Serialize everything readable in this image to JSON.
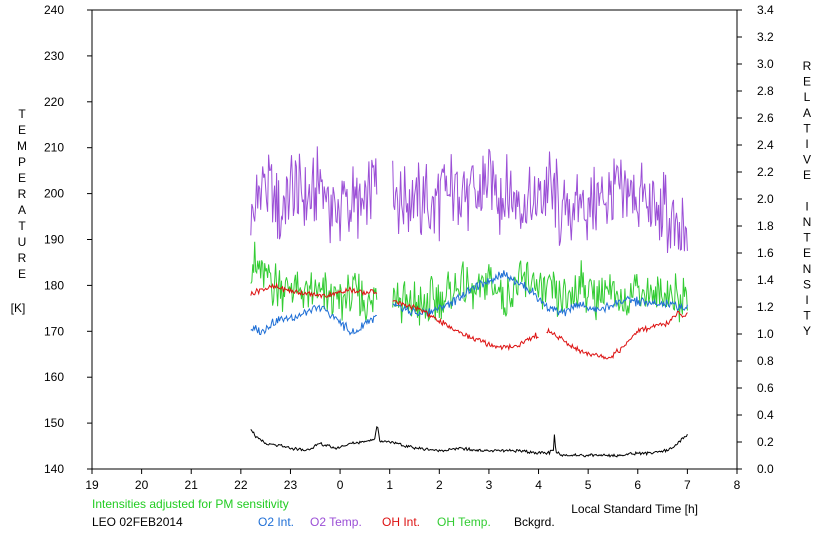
{
  "chart_data": {
    "type": "line",
    "x_axis": {
      "label": "Local Standard Time [h]",
      "range": [
        19,
        32
      ],
      "ticks": [
        19,
        20,
        21,
        22,
        23,
        24,
        25,
        26,
        27,
        28,
        29,
        30,
        31,
        32
      ],
      "tick_labels": [
        "19",
        "20",
        "21",
        "22",
        "23",
        "0",
        "1",
        "2",
        "3",
        "4",
        "5",
        "6",
        "7",
        "8"
      ]
    },
    "y_left": {
      "label": "TEMPERATURE",
      "unit": "[K]",
      "range": [
        140,
        240
      ],
      "ticks": [
        140,
        150,
        160,
        170,
        180,
        190,
        200,
        210,
        220,
        230,
        240
      ]
    },
    "y_right": {
      "label": "RELATIVE INTENSITY",
      "range": [
        0.0,
        3.4
      ],
      "ticks": [
        "0.0",
        "0.2",
        "0.4",
        "0.6",
        "0.8",
        "1.0",
        "1.2",
        "1.4",
        "1.6",
        "1.8",
        "2.0",
        "2.2",
        "2.4",
        "2.6",
        "2.8",
        "3.0",
        "3.2",
        "3.4"
      ]
    },
    "note": "Intensities adjusted for PM sensitivity",
    "station": "LEO 02FEB2014",
    "grid": false,
    "legend_position": "bottom",
    "legend": [
      {
        "name": "O2 Int.",
        "color": "#1f6fd6"
      },
      {
        "name": "O2 Temp.",
        "color": "#9b4fd6"
      },
      {
        "name": "OH Int.",
        "color": "#dd1111"
      },
      {
        "name": "OH Temp.",
        "color": "#33cc33"
      },
      {
        "name": "Bckgrd.",
        "color": "#000000"
      }
    ],
    "series": [
      {
        "name": "O2 Temp.",
        "axis": "left",
        "color": "#9b4fd6",
        "x": [
          22.2,
          22.5,
          22.8,
          23.0,
          23.3,
          23.6,
          23.9,
          24.1,
          24.4,
          24.7,
          25.2,
          25.5,
          25.8,
          26.1,
          26.4,
          26.7,
          27.0,
          27.3,
          27.6,
          27.9,
          28.2,
          28.5,
          28.8,
          29.1,
          29.4,
          29.7,
          30.0,
          30.3,
          30.5,
          30.6,
          30.7,
          31.0
        ],
        "y": [
          194,
          203,
          196,
          201,
          198,
          203,
          195,
          198,
          197,
          202,
          199,
          199,
          197,
          200,
          202,
          199,
          203,
          199,
          200,
          196,
          202,
          195,
          199,
          197,
          199,
          199,
          200,
          196,
          197,
          195,
          193,
          188
        ],
        "amplitude": 10,
        "gaps": [
          [
            24.75,
            25.05
          ]
        ]
      },
      {
        "name": "OH Temp.",
        "axis": "left",
        "color": "#33cc33",
        "x": [
          22.2,
          22.5,
          22.8,
          23.1,
          23.4,
          23.7,
          24.0,
          24.3,
          24.6,
          24.9,
          25.2,
          25.5,
          25.8,
          26.1,
          26.4,
          26.7,
          27.0,
          27.3,
          27.6,
          27.9,
          28.2,
          28.5,
          28.8,
          29.1,
          29.4,
          29.7,
          30.0,
          30.3,
          30.6,
          30.8,
          31.0
        ],
        "y": [
          186,
          181,
          180,
          179,
          178,
          178,
          177,
          178,
          176,
          180,
          176,
          176,
          176,
          178,
          180,
          178,
          181,
          178,
          180,
          181,
          178,
          177,
          180,
          178,
          179,
          176,
          180,
          178,
          179,
          177,
          178
        ],
        "amplitude": 6,
        "gaps": [
          [
            24.75,
            25.05
          ]
        ]
      },
      {
        "name": "O2 Int.",
        "axis": "right",
        "color": "#1f6fd6",
        "x": [
          22.2,
          22.4,
          22.7,
          23.0,
          23.3,
          23.6,
          23.9,
          24.1,
          24.3,
          24.5,
          24.7,
          25.0,
          25.3,
          25.6,
          25.9,
          26.2,
          26.5,
          26.8,
          27.0,
          27.3,
          27.6,
          27.9,
          28.2,
          28.5,
          28.8,
          29.1,
          29.4,
          29.7,
          30.0,
          30.3,
          30.6,
          30.8,
          31.0
        ],
        "y": [
          1.05,
          1.02,
          1.1,
          1.12,
          1.15,
          1.2,
          1.12,
          1.05,
          1.0,
          1.08,
          1.12,
          1.22,
          1.18,
          1.15,
          1.18,
          1.22,
          1.3,
          1.36,
          1.4,
          1.45,
          1.38,
          1.3,
          1.2,
          1.15,
          1.22,
          1.18,
          1.2,
          1.25,
          1.24,
          1.22,
          1.22,
          1.2,
          1.2
        ],
        "amplitude": 0.04,
        "gaps": [
          [
            24.75,
            25.05
          ]
        ]
      },
      {
        "name": "OH Int.",
        "axis": "right",
        "color": "#dd1111",
        "x": [
          22.2,
          22.4,
          22.7,
          23.0,
          23.3,
          23.6,
          23.9,
          24.2,
          24.5,
          24.7,
          25.0,
          25.3,
          25.6,
          25.9,
          26.2,
          26.5,
          26.8,
          27.0,
          27.3,
          27.6,
          27.9,
          28.2,
          28.5,
          28.8,
          29.1,
          29.4,
          29.7,
          30.0,
          30.3,
          30.6,
          30.8,
          31.0
        ],
        "y": [
          1.3,
          1.33,
          1.35,
          1.32,
          1.3,
          1.28,
          1.3,
          1.33,
          1.3,
          1.32,
          1.25,
          1.22,
          1.18,
          1.12,
          1.05,
          1.0,
          0.95,
          0.92,
          0.9,
          0.92,
          0.98,
          1.02,
          0.95,
          0.88,
          0.85,
          0.82,
          0.9,
          1.02,
          1.05,
          1.08,
          1.15,
          1.14
        ],
        "amplitude": 0.025,
        "gaps": [
          [
            24.75,
            25.05
          ],
          [
            28.0,
            28.15
          ]
        ]
      },
      {
        "name": "Bckgrd.",
        "axis": "left",
        "color": "#000000",
        "x": [
          22.2,
          22.3,
          22.5,
          22.8,
          23.0,
          23.3,
          23.6,
          23.9,
          24.2,
          24.5,
          24.7,
          24.75,
          24.8,
          25.0,
          25.3,
          25.6,
          26.0,
          26.4,
          26.8,
          27.2,
          27.6,
          28.0,
          28.2,
          28.3,
          28.32,
          28.35,
          28.5,
          28.9,
          29.3,
          29.7,
          30.0,
          30.3,
          30.6,
          30.8,
          31.0
        ],
        "y": [
          149,
          147,
          145.5,
          145,
          144.5,
          144,
          145.5,
          144.5,
          145.5,
          146,
          146.5,
          150,
          146,
          146,
          145,
          144.5,
          144,
          144.5,
          144,
          144,
          144,
          143.5,
          143.5,
          144,
          147.5,
          143.5,
          143,
          143,
          143,
          143,
          143.5,
          143.5,
          144,
          145.5,
          147.5
        ],
        "amplitude": 0.4,
        "gaps": []
      }
    ]
  }
}
